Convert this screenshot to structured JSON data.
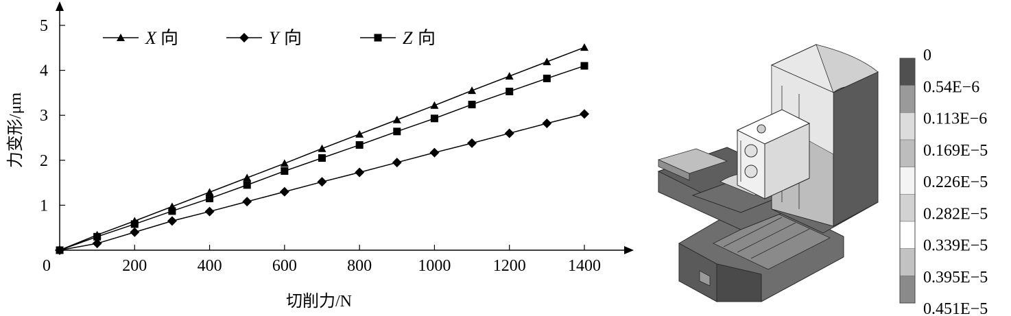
{
  "chart_data": {
    "type": "line",
    "xlabel": "切削力/N",
    "ylabel": "力变形/μm",
    "origin_label": "0",
    "xlim": [
      0,
      1500
    ],
    "ylim": [
      0,
      5.4
    ],
    "x_ticks": [
      200,
      400,
      600,
      800,
      1000,
      1200,
      1400
    ],
    "x_tick_labels": [
      "200",
      "400",
      "600",
      "800",
      "1000",
      "1200",
      "1400"
    ],
    "y_ticks": [
      1,
      2,
      3,
      4,
      5
    ],
    "y_tick_labels": [
      "1",
      "2",
      "3",
      "4",
      "5"
    ],
    "x": [
      0,
      100,
      200,
      300,
      400,
      500,
      600,
      700,
      800,
      900,
      1000,
      1100,
      1200,
      1300,
      1400
    ],
    "series": [
      {
        "name_axis": "X",
        "name_suffix": "向",
        "marker": "triangle",
        "values": [
          0,
          0.34,
          0.65,
          0.97,
          1.29,
          1.61,
          1.93,
          2.26,
          2.58,
          2.9,
          3.22,
          3.55,
          3.87,
          4.19,
          4.51
        ]
      },
      {
        "name_axis": "Y",
        "name_suffix": "向",
        "marker": "diamond",
        "values": [
          0,
          0.15,
          0.4,
          0.65,
          0.86,
          1.08,
          1.3,
          1.52,
          1.73,
          1.95,
          2.17,
          2.38,
          2.6,
          2.82,
          3.03
        ]
      },
      {
        "name_axis": "Z",
        "name_suffix": "向",
        "marker": "square",
        "values": [
          0,
          0.3,
          0.58,
          0.87,
          1.15,
          1.45,
          1.76,
          2.05,
          2.34,
          2.64,
          2.93,
          3.24,
          3.53,
          3.82,
          4.1
        ]
      }
    ]
  },
  "color_scale": {
    "labels": [
      "0",
      "0.54E−6",
      "0.113E−6",
      "0.169E−5",
      "0.226E−5",
      "0.282E−5",
      "0.339E−5",
      "0.395E−5",
      "0.451E−5"
    ],
    "colors": [
      "#505050",
      "#9a9a9a",
      "#dcdcdc",
      "#bdbdbd",
      "#f4f4f4",
      "#d2d2d2",
      "#ffffff",
      "#c2c2c2",
      "#8a8a8a"
    ]
  }
}
